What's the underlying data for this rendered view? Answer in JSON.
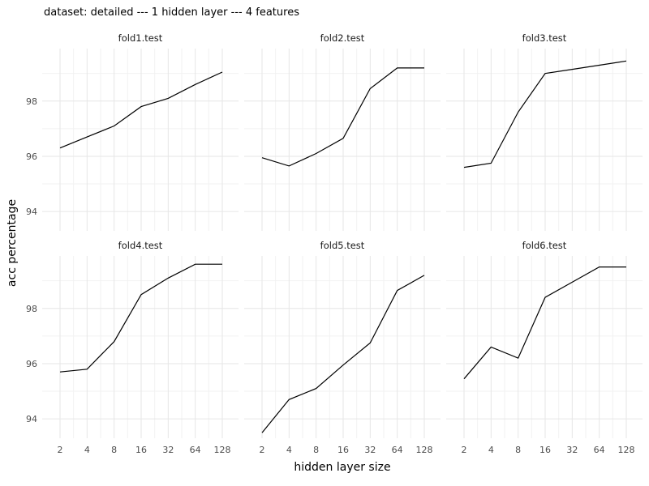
{
  "chart_data": {
    "type": "line",
    "title": "dataset: detailed --- 1 hidden layer --- 4 features",
    "xlabel": "hidden layer size",
    "ylabel": "acc percentage",
    "x": [
      2,
      4,
      8,
      16,
      32,
      64,
      128
    ],
    "x_scale": "log2",
    "x_tick_labels": [
      "2",
      "4",
      "8",
      "16",
      "32",
      "64",
      "128"
    ],
    "y_ticks": [
      94,
      96,
      98
    ],
    "y_tick_labels": [
      "94",
      "96",
      "98"
    ],
    "ylim": [
      93.3,
      99.9
    ],
    "grid": true,
    "facet_layout": "2x3",
    "facets": [
      {
        "name": "fold1.test",
        "values": [
          96.3,
          96.7,
          97.1,
          97.8,
          98.1,
          98.6,
          99.05
        ]
      },
      {
        "name": "fold2.test",
        "values": [
          95.95,
          95.65,
          96.1,
          96.65,
          98.45,
          99.2,
          99.2
        ]
      },
      {
        "name": "fold3.test",
        "values": [
          95.6,
          95.75,
          97.6,
          99.0,
          99.15,
          99.3,
          99.45
        ]
      },
      {
        "name": "fold4.test",
        "values": [
          95.7,
          95.8,
          96.8,
          98.5,
          99.1,
          99.6,
          99.6
        ]
      },
      {
        "name": "fold5.test",
        "values": [
          93.5,
          94.7,
          95.1,
          95.95,
          96.75,
          98.65,
          99.2
        ]
      },
      {
        "name": "fold6.test",
        "values": [
          95.45,
          96.6,
          96.2,
          98.4,
          98.95,
          99.5,
          99.5
        ]
      }
    ]
  }
}
